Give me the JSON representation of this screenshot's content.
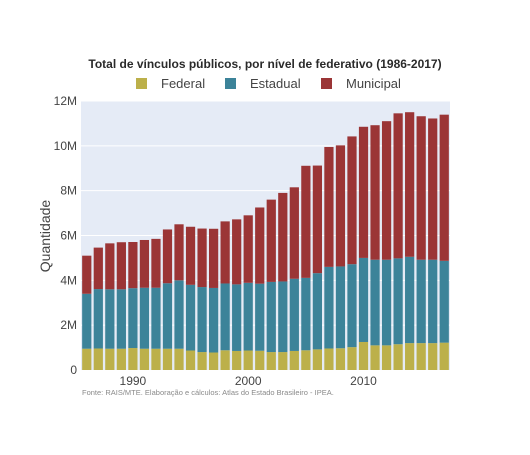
{
  "chart_data": {
    "type": "bar",
    "stacked": true,
    "title": "Total de vínculos públicos, por nível de federativo (1986-2017)",
    "ylabel": "Quantidade",
    "xlabel": "",
    "ylim": [
      0,
      12000000
    ],
    "yticks": [
      {
        "value": 0,
        "label": "0"
      },
      {
        "value": 2000000,
        "label": "2M"
      },
      {
        "value": 4000000,
        "label": "4M"
      },
      {
        "value": 6000000,
        "label": "6M"
      },
      {
        "value": 8000000,
        "label": "8M"
      },
      {
        "value": 10000000,
        "label": "10M"
      },
      {
        "value": 12000000,
        "label": "12M"
      }
    ],
    "xticks": [
      {
        "value": 1990,
        "label": "1990"
      },
      {
        "value": 2000,
        "label": "2000"
      },
      {
        "value": 2010,
        "label": "2010"
      }
    ],
    "grid": true,
    "legend_position": "top",
    "x": [
      1986,
      1987,
      1988,
      1989,
      1990,
      1991,
      1992,
      1993,
      1994,
      1995,
      1996,
      1997,
      1998,
      1999,
      2000,
      2001,
      2002,
      2003,
      2004,
      2005,
      2006,
      2007,
      2008,
      2009,
      2010,
      2011,
      2012,
      2013,
      2014,
      2015,
      2016,
      2017
    ],
    "series": [
      {
        "name": "Federal",
        "color": "#bcb04a",
        "values": [
          950000,
          960000,
          950000,
          950000,
          980000,
          950000,
          950000,
          950000,
          950000,
          870000,
          800000,
          780000,
          880000,
          850000,
          870000,
          860000,
          800000,
          800000,
          850000,
          880000,
          920000,
          960000,
          970000,
          1020000,
          1250000,
          1100000,
          1100000,
          1150000,
          1200000,
          1200000,
          1200000,
          1220000
        ]
      },
      {
        "name": "Estadual",
        "color": "#3c8399",
        "values": [
          2450000,
          2650000,
          2650000,
          2650000,
          2670000,
          2720000,
          2720000,
          2920000,
          3050000,
          2930000,
          2900000,
          2880000,
          2980000,
          2970000,
          3020000,
          2990000,
          3130000,
          3150000,
          3220000,
          3230000,
          3400000,
          3640000,
          3650000,
          3700000,
          3750000,
          3820000,
          3820000,
          3830000,
          3850000,
          3720000,
          3720000,
          3650000
        ]
      },
      {
        "name": "Municipal",
        "color": "#9b3536",
        "values": [
          1700000,
          1850000,
          2050000,
          2100000,
          2060000,
          2130000,
          2180000,
          2400000,
          2500000,
          2590000,
          2610000,
          2640000,
          2770000,
          2900000,
          3010000,
          3400000,
          3670000,
          3950000,
          4080000,
          5000000,
          4800000,
          5350000,
          5400000,
          5700000,
          5850000,
          6000000,
          6180000,
          6470000,
          6450000,
          6400000,
          6300000,
          6520000
        ]
      }
    ],
    "source_note": "Fonte: RAIS/MTE. Elaboração e cálculos: Atlas do Estado Brasileiro - IPEA."
  }
}
